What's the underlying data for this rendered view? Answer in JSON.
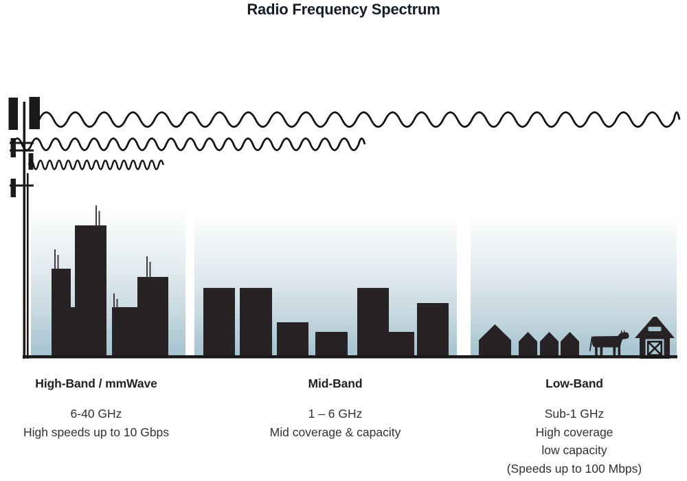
{
  "title": "Radio Frequency Spectrum",
  "bands": [
    {
      "id": "high-band",
      "label": "High-Band / mmWave",
      "lines": [
        "6-40 GHz",
        "High speeds up to 10 Gbps"
      ],
      "scene": "city-skyline",
      "wave": "short-wavelength"
    },
    {
      "id": "mid-band",
      "label": "Mid-Band",
      "lines": [
        "1 – 6 GHz",
        "Mid coverage & capacity"
      ],
      "scene": "suburban-buildings",
      "wave": "medium-wavelength"
    },
    {
      "id": "low-band",
      "label": "Low-Band",
      "lines": [
        "Sub-1 GHz",
        "High coverage",
        "low capacity",
        "(Speeds up to 100 Mbps)"
      ],
      "scene": "rural-farm",
      "wave": "long-wavelength"
    }
  ],
  "colors": {
    "silhouette": "#272324",
    "sky_top": "#ffffff",
    "sky_bottom": "#a4c2d0",
    "title_text": "#171c26",
    "body_text": "#323032"
  }
}
